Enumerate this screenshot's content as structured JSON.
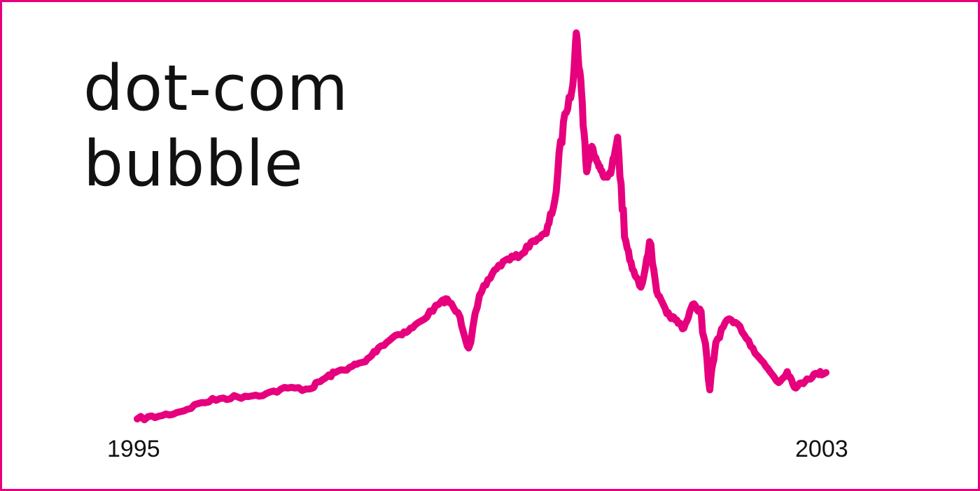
{
  "chart_data": {
    "type": "line",
    "title_lines": [
      "dot-com",
      "bubble"
    ],
    "xlabel": "",
    "ylabel": "",
    "x_tick_labels": [
      "1995",
      "2003"
    ],
    "xlim": [
      1995.0,
      2003.0
    ],
    "grid": false,
    "legend": "none",
    "line_color": "#e6007e",
    "series": [
      {
        "x": [
          1995.0,
          1995.25,
          1995.5,
          1995.75,
          1996.0,
          1996.25,
          1996.5,
          1996.75,
          1997.0,
          1997.15,
          1997.3,
          1997.5,
          1997.65,
          1997.8,
          1998.0,
          1998.15,
          1998.3,
          1998.5,
          1998.6,
          1998.75,
          1998.85,
          1999.0,
          1999.15,
          1999.3,
          1999.45,
          1999.6,
          1999.75,
          1999.85,
          1999.95,
          2000.05,
          2000.1,
          2000.16,
          2000.22,
          2000.28,
          2000.35,
          2000.42,
          2000.5,
          2000.58,
          2000.66,
          2000.75,
          2000.85,
          2000.95,
          2001.05,
          2001.15,
          2001.25,
          2001.35,
          2001.45,
          2001.55,
          2001.65,
          2001.72,
          2001.85,
          2002.0,
          2002.15,
          2002.3,
          2002.45,
          2002.55,
          2002.65,
          2002.78,
          2002.9,
          2003.0
        ],
        "y": [
          800,
          830,
          880,
          980,
          1030,
          1050,
          1080,
          1140,
          1130,
          1230,
          1310,
          1380,
          1430,
          1580,
          1720,
          1770,
          1880,
          2060,
          2120,
          1920,
          1580,
          2200,
          2440,
          2560,
          2600,
          2760,
          2840,
          3200,
          4069,
          4420,
          5048,
          4400,
          3520,
          3800,
          3620,
          3460,
          3500,
          3900,
          2800,
          2450,
          2250,
          2750,
          2160,
          1960,
          1890,
          1800,
          2060,
          1980,
          1120,
          1640,
          1890,
          1820,
          1580,
          1380,
          1200,
          1320,
          1140,
          1240,
          1300,
          1310
        ]
      }
    ]
  }
}
